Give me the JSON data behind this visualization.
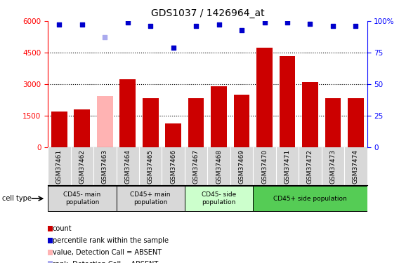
{
  "title": "GDS1037 / 1426964_at",
  "samples": [
    "GSM37461",
    "GSM37462",
    "GSM37463",
    "GSM37464",
    "GSM37465",
    "GSM37466",
    "GSM37467",
    "GSM37468",
    "GSM37469",
    "GSM37470",
    "GSM37471",
    "GSM37472",
    "GSM37473",
    "GSM37474"
  ],
  "counts": [
    1700,
    1800,
    2450,
    3250,
    2350,
    1150,
    2350,
    2900,
    2500,
    4750,
    4350,
    3100,
    2350,
    2350
  ],
  "absent_count_idx": [
    2
  ],
  "percentile_ranks": [
    97,
    97,
    87,
    99,
    96,
    79,
    96,
    97,
    93,
    99,
    99,
    98,
    96,
    96
  ],
  "absent_rank_idx": [
    2
  ],
  "bar_color_present": "#cc0000",
  "bar_color_absent": "#ffb3b3",
  "dot_color_present": "#0000cc",
  "dot_color_absent": "#aaaaee",
  "ylim_left": [
    0,
    6000
  ],
  "ylim_right": [
    0,
    100
  ],
  "yticks_left": [
    0,
    1500,
    3000,
    4500,
    6000
  ],
  "yticks_right": [
    0,
    25,
    50,
    75,
    100
  ],
  "groups": [
    {
      "label": "CD45- main\npopulation",
      "start": 0,
      "end": 2,
      "color": "#d8d8d8"
    },
    {
      "label": "CD45+ main\npopulation",
      "start": 3,
      "end": 5,
      "color": "#d8d8d8"
    },
    {
      "label": "CD45- side\npopulation",
      "start": 6,
      "end": 8,
      "color": "#ccffcc"
    },
    {
      "label": "CD45+ side population",
      "start": 9,
      "end": 13,
      "color": "#55cc55"
    }
  ],
  "cell_type_label": "cell type",
  "legend_items": [
    {
      "label": "count",
      "color": "#cc0000"
    },
    {
      "label": "percentile rank within the sample",
      "color": "#0000cc"
    },
    {
      "label": "value, Detection Call = ABSENT",
      "color": "#ffb3b3"
    },
    {
      "label": "rank, Detection Call = ABSENT",
      "color": "#aaaaee"
    }
  ],
  "background_color": "#ffffff"
}
